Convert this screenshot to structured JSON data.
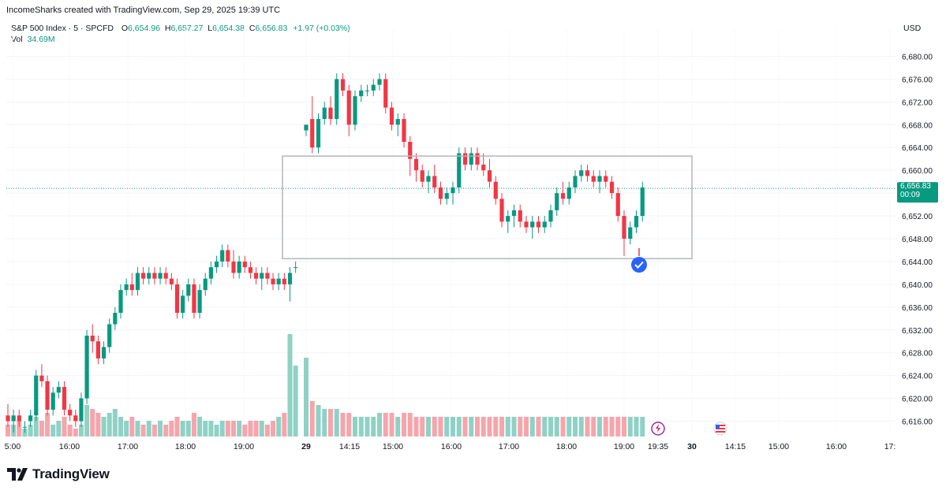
{
  "header": {
    "attribution": "IncomeSharks created with TradingView.com, Sep 29, 2025 19:39 UTC"
  },
  "legend": {
    "symbol": "S&P 500 Index · 5 · SPCFD",
    "open_label": "O",
    "open": "6,654.96",
    "high_label": "H",
    "high": "6,657.27",
    "low_label": "L",
    "low": "6,654.38",
    "close_label": "C",
    "close": "6,656.83",
    "change": "+1.97 (+0.03%)",
    "vol_label": "Vol",
    "vol_value": "34.69M"
  },
  "price_axis": {
    "currency": "USD",
    "last_price": "6,656.83",
    "countdown": "00:09"
  },
  "colors": {
    "up": "#089981",
    "down": "#F23645",
    "up_vol": "#8fd1c5",
    "down_vol": "#f5a5ab",
    "last_price": "#089981",
    "box": "#b2b5be"
  },
  "footer": {
    "brand": "TradingView"
  },
  "icons": [
    "lightning-event-icon",
    "us-flag-event-icon",
    "checkmark-badge-icon",
    "tradingview-logo-icon"
  ],
  "chart_data": {
    "type": "candlestick",
    "symbol": "S&P 500 Index",
    "interval": "5",
    "ylim": [
      6614,
      6682
    ],
    "y_ticks": [
      "6,616.00",
      "6,620.00",
      "6,624.00",
      "6,628.00",
      "6,632.00",
      "6,636.00",
      "6,640.00",
      "6,644.00",
      "6,648.00",
      "6,652.00",
      "6,656.00",
      "6,660.00",
      "6,664.00",
      "6,668.00",
      "6,672.00",
      "6,676.00",
      "6,680.00"
    ],
    "x_tick_labels": [
      "5:00",
      "16:00",
      "17:00",
      "18:00",
      "19:00",
      "29",
      "14:15",
      "15:00",
      "16:00",
      "17:00",
      "18:00",
      "19:00",
      "19:35",
      "30",
      "14:15",
      "15:00",
      "16:00",
      "17:"
    ],
    "last_price": 6656.83,
    "range_box": {
      "top": 6662.5,
      "bottom": 6644.5
    },
    "candles": [
      [
        6617,
        6619,
        6615,
        6616
      ],
      [
        6616,
        6618,
        6614,
        6617
      ],
      [
        6617,
        6618,
        6615,
        6616
      ],
      [
        6615,
        6616,
        6614,
        6615
      ],
      [
        6616,
        6618,
        6615,
        6617
      ],
      [
        6617,
        6625,
        6616,
        6624
      ],
      [
        6624,
        6626,
        6622,
        6623
      ],
      [
        6623,
        6624,
        6617,
        6618
      ],
      [
        6618,
        6622,
        6617,
        6621
      ],
      [
        6621,
        6623,
        6620,
        6622
      ],
      [
        6622,
        6623,
        6617,
        6618
      ],
      [
        6618,
        6619,
        6616,
        6617
      ],
      [
        6617,
        6618,
        6615,
        6616
      ],
      [
        6616,
        6621,
        6615,
        6620
      ],
      [
        6620,
        6632,
        6619,
        6631
      ],
      [
        6631,
        6633,
        6628,
        6630
      ],
      [
        6630,
        6631,
        6626,
        6627
      ],
      [
        6627,
        6630,
        6626,
        6629
      ],
      [
        6629,
        6634,
        6628,
        6633
      ],
      [
        6633,
        6636,
        6632,
        6635
      ],
      [
        6635,
        6640,
        6634,
        6639
      ],
      [
        6639,
        6641,
        6638,
        6640
      ],
      [
        6640,
        6642,
        6638,
        6639
      ],
      [
        6639,
        6643,
        6638,
        6642
      ],
      [
        6642,
        6643,
        6640,
        6641
      ],
      [
        6641,
        6643,
        6640,
        6642
      ],
      [
        6642,
        6643,
        6640,
        6641
      ],
      [
        6641,
        6643,
        6640,
        6642
      ],
      [
        6642,
        6643,
        6640,
        6641
      ],
      [
        6641,
        6642,
        6639,
        6640
      ],
      [
        6640,
        6641,
        6634,
        6635
      ],
      [
        6635,
        6639,
        6634,
        6638
      ],
      [
        6638,
        6641,
        6637,
        6640
      ],
      [
        6640,
        6641,
        6634,
        6635
      ],
      [
        6635,
        6640,
        6634,
        6639
      ],
      [
        6639,
        6642,
        6638,
        6641
      ],
      [
        6641,
        6644,
        6640,
        6643
      ],
      [
        6643,
        6645,
        6642,
        6644
      ],
      [
        6644,
        6647,
        6643,
        6646
      ],
      [
        6646,
        6647,
        6643,
        6644
      ],
      [
        6644,
        6646,
        6641,
        6642
      ],
      [
        6642,
        6645,
        6641,
        6644
      ],
      [
        6644,
        6645,
        6642,
        6643
      ],
      [
        6643,
        6644,
        6641,
        6642
      ],
      [
        6642,
        6643,
        6640,
        6641
      ],
      [
        6641,
        6643,
        6639,
        6642
      ],
      [
        6642,
        6643,
        6640,
        6641
      ],
      [
        6641,
        6642,
        6639,
        6640
      ],
      [
        6640,
        6642,
        6639,
        6641
      ],
      [
        6641,
        6642,
        6639,
        6640
      ],
      [
        6640,
        6643,
        6637,
        6642
      ],
      [
        6643,
        6644,
        6642,
        6643
      ],
      [
        6667,
        6668,
        6666,
        6668
      ],
      [
        6669,
        6673,
        6663,
        6664
      ],
      [
        6664,
        6670,
        6663,
        6669
      ],
      [
        6669,
        6672,
        6668,
        6671
      ],
      [
        6671,
        6673,
        6668,
        6669
      ],
      [
        6669,
        6677,
        6668,
        6676
      ],
      [
        6676,
        6677,
        6673,
        6674
      ],
      [
        6674,
        6675,
        6666,
        6668
      ],
      [
        6668,
        6674,
        6667,
        6673
      ],
      [
        6673,
        6675,
        6672,
        6674
      ],
      [
        6674,
        6675,
        6673,
        6674
      ],
      [
        6674,
        6676,
        6673,
        6675
      ],
      [
        6675,
        6677,
        6674,
        6676
      ],
      [
        6676,
        6677,
        6670,
        6671
      ],
      [
        6671,
        6672,
        6667,
        6668
      ],
      [
        6668,
        6670,
        6666,
        6669
      ],
      [
        6669,
        6670,
        6664,
        6665
      ],
      [
        6665,
        6666,
        6659,
        6662
      ],
      [
        6662,
        6663,
        6658,
        6660
      ],
      [
        6660,
        6661,
        6657,
        6658
      ],
      [
        6658,
        6660,
        6656,
        6659
      ],
      [
        6659,
        6661,
        6656,
        6657
      ],
      [
        6657,
        6658,
        6654,
        6655
      ],
      [
        6655,
        6657,
        6654,
        6656
      ],
      [
        6656,
        6658,
        6654,
        6657
      ],
      [
        6657,
        6664,
        6656,
        6663
      ],
      [
        6663,
        6664,
        6660,
        6661
      ],
      [
        6661,
        6664,
        6660,
        6663
      ],
      [
        6663,
        6664,
        6660,
        6661
      ],
      [
        6661,
        6663,
        6659,
        6660
      ],
      [
        6660,
        6662,
        6657,
        6658
      ],
      [
        6658,
        6659,
        6654,
        6655
      ],
      [
        6655,
        6656,
        6650,
        6651
      ],
      [
        6651,
        6653,
        6649,
        6652
      ],
      [
        6652,
        6654,
        6650,
        6653
      ],
      [
        6653,
        6654,
        6650,
        6651
      ],
      [
        6651,
        6652,
        6649,
        6650
      ],
      [
        6650,
        6652,
        6648,
        6651
      ],
      [
        6651,
        6652,
        6649,
        6650
      ],
      [
        6650,
        6652,
        6649,
        6651
      ],
      [
        6651,
        6654,
        6650,
        6653
      ],
      [
        6653,
        6657,
        6652,
        6656
      ],
      [
        6656,
        6658,
        6654,
        6655
      ],
      [
        6655,
        6658,
        6654,
        6657
      ],
      [
        6657,
        6660,
        6656,
        6659
      ],
      [
        6659,
        6661,
        6658,
        6660
      ],
      [
        6660,
        6661,
        6658,
        6659
      ],
      [
        6659,
        6660,
        6657,
        6658
      ],
      [
        6658,
        6660,
        6656,
        6659
      ],
      [
        6659,
        6660,
        6657,
        6658
      ],
      [
        6658,
        6659,
        6655,
        6656
      ],
      [
        6656,
        6657,
        6651,
        6652
      ],
      [
        6652,
        6653,
        6645,
        6648
      ],
      [
        6648,
        6651,
        6647,
        6650
      ],
      [
        6650,
        6653,
        6649,
        6652
      ],
      [
        6652,
        6658,
        6651,
        6657
      ]
    ],
    "volume": [
      3,
      3,
      4,
      2,
      3,
      5,
      4,
      6,
      3,
      4,
      5,
      3,
      2,
      3,
      8,
      7,
      6,
      5,
      6,
      7,
      5,
      4,
      5,
      4,
      3,
      4,
      3,
      4,
      3,
      4,
      5,
      4,
      4,
      6,
      5,
      4,
      4,
      3,
      4,
      4,
      4,
      4,
      3,
      4,
      4,
      4,
      3,
      4,
      5,
      6,
      26,
      18,
      20,
      9,
      8,
      7,
      7,
      7,
      6,
      6,
      5,
      5,
      5,
      5,
      6,
      6,
      6,
      5,
      6,
      6,
      5,
      5,
      5,
      5,
      5,
      5,
      5,
      5,
      5,
      5,
      5,
      5,
      5,
      5,
      5,
      5,
      5,
      5,
      5,
      5,
      5,
      5,
      5,
      5,
      5,
      5,
      5,
      5,
      5,
      5,
      5,
      5,
      5,
      5,
      5,
      5,
      5,
      5
    ]
  }
}
